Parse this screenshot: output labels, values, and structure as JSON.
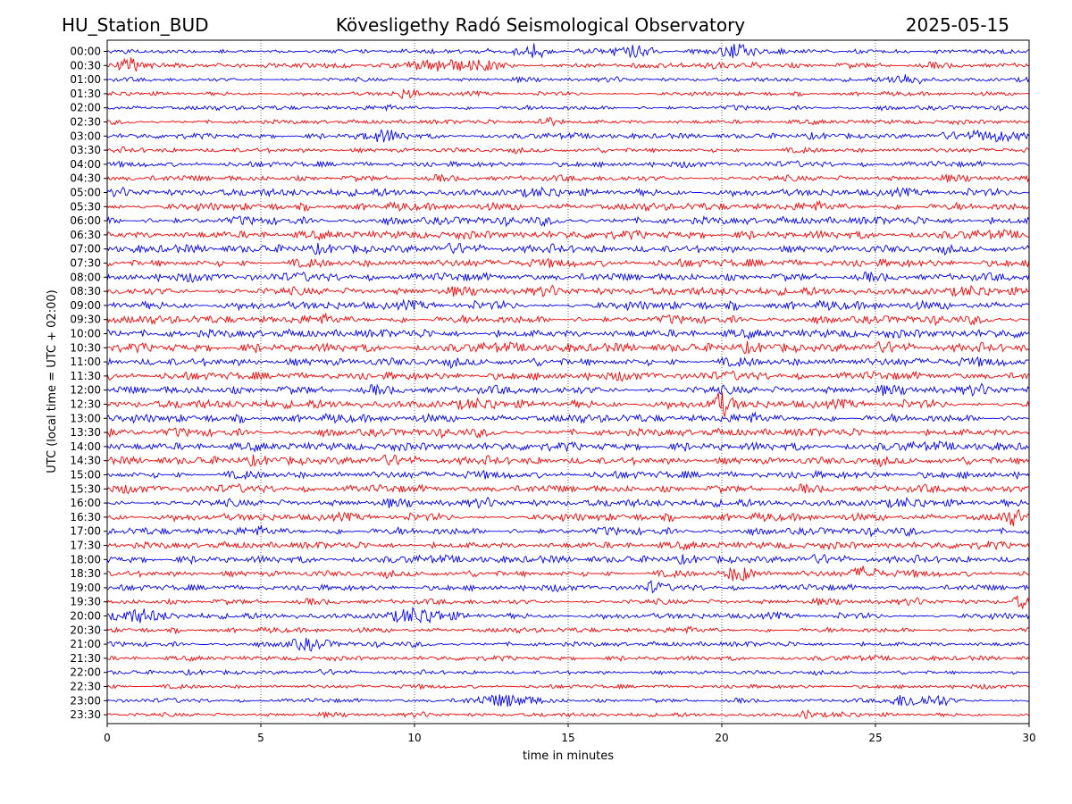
{
  "header": {
    "station": "HU_Station_BUD",
    "title": "Köveslige­thy Radó Seismological Observatory",
    "date": "2025-05-15"
  },
  "chart_data": {
    "type": "line",
    "title": "Köveslige­thy Radó Seismological Observatory",
    "xlabel": "time in minutes",
    "ylabel": "UTC (local time = UTC + 02:00)",
    "xlim": [
      0,
      30
    ],
    "x_ticks": [
      "0",
      "5",
      "10",
      "15",
      "20",
      "25",
      "30"
    ],
    "x_tick_values": [
      0,
      5,
      10,
      15,
      20,
      25,
      30
    ],
    "grid": "vertical dotted at x ticks",
    "colors": [
      "#0000ff",
      "#ff0000"
    ],
    "rows": [
      "00:00",
      "00:30",
      "01:00",
      "01:30",
      "02:00",
      "02:30",
      "03:00",
      "03:30",
      "04:00",
      "04:30",
      "05:00",
      "05:30",
      "06:00",
      "06:30",
      "07:00",
      "07:30",
      "08:00",
      "08:30",
      "09:00",
      "09:30",
      "10:00",
      "10:30",
      "11:00",
      "11:30",
      "12:00",
      "12:30",
      "13:00",
      "13:30",
      "14:00",
      "14:30",
      "15:00",
      "15:30",
      "16:00",
      "16:30",
      "17:00",
      "17:30",
      "18:00",
      "18:30",
      "19:00",
      "19:30",
      "20:00",
      "20:30",
      "21:00",
      "21:30",
      "22:00",
      "22:30",
      "23:00",
      "23:30"
    ],
    "noise_level": [
      0.45,
      0.55,
      0.4,
      0.4,
      0.45,
      0.45,
      0.5,
      0.5,
      0.55,
      0.6,
      0.75,
      0.75,
      0.8,
      0.8,
      0.8,
      0.8,
      0.8,
      0.8,
      0.85,
      0.8,
      0.85,
      0.85,
      0.85,
      0.8,
      0.85,
      0.85,
      0.8,
      0.8,
      0.8,
      0.8,
      0.75,
      0.75,
      0.75,
      0.75,
      0.75,
      0.7,
      0.7,
      0.65,
      0.6,
      0.55,
      0.6,
      0.5,
      0.5,
      0.45,
      0.4,
      0.4,
      0.4,
      0.4
    ],
    "events": [
      {
        "row": 0,
        "x": 14.0,
        "amp": 1.6,
        "width": 0.4
      },
      {
        "row": 0,
        "x": 17.0,
        "amp": 1.5,
        "width": 0.8
      },
      {
        "row": 0,
        "x": 20.6,
        "amp": 2.0,
        "width": 0.9
      },
      {
        "row": 1,
        "x": 0.8,
        "amp": 1.3,
        "width": 0.7
      },
      {
        "row": 1,
        "x": 10.8,
        "amp": 1.4,
        "width": 0.8
      },
      {
        "row": 1,
        "x": 12.3,
        "amp": 1.4,
        "width": 1.0
      },
      {
        "row": 2,
        "x": 26.0,
        "amp": 1.3,
        "width": 0.8
      },
      {
        "row": 3,
        "x": 9.8,
        "amp": 1.2,
        "width": 0.5
      },
      {
        "row": 5,
        "x": 14.3,
        "amp": 1.6,
        "width": 0.4
      },
      {
        "row": 6,
        "x": 9.0,
        "amp": 1.3,
        "width": 1.0
      },
      {
        "row": 6,
        "x": 28.8,
        "amp": 1.3,
        "width": 1.2
      },
      {
        "row": 25,
        "x": 20.0,
        "amp": 2.6,
        "width": 0.5
      },
      {
        "row": 33,
        "x": 29.5,
        "amp": 1.4,
        "width": 0.5
      },
      {
        "row": 37,
        "x": 20.6,
        "amp": 1.8,
        "width": 0.6
      },
      {
        "row": 37,
        "x": 24.7,
        "amp": 1.6,
        "width": 0.6
      },
      {
        "row": 38,
        "x": 17.8,
        "amp": 1.3,
        "width": 0.3
      },
      {
        "row": 39,
        "x": 29.7,
        "amp": 1.5,
        "width": 0.3
      },
      {
        "row": 40,
        "x": 1.0,
        "amp": 1.3,
        "width": 1.2
      },
      {
        "row": 40,
        "x": 10.2,
        "amp": 1.3,
        "width": 1.4
      },
      {
        "row": 42,
        "x": 6.5,
        "amp": 1.2,
        "width": 1.0
      },
      {
        "row": 46,
        "x": 13.0,
        "amp": 1.4,
        "width": 1.5
      },
      {
        "row": 46,
        "x": 26.0,
        "amp": 1.5,
        "width": 0.8
      },
      {
        "row": 46,
        "x": 27.0,
        "amp": 1.3,
        "width": 0.6
      },
      {
        "row": 47,
        "x": 22.8,
        "amp": 1.2,
        "width": 0.3
      }
    ]
  }
}
